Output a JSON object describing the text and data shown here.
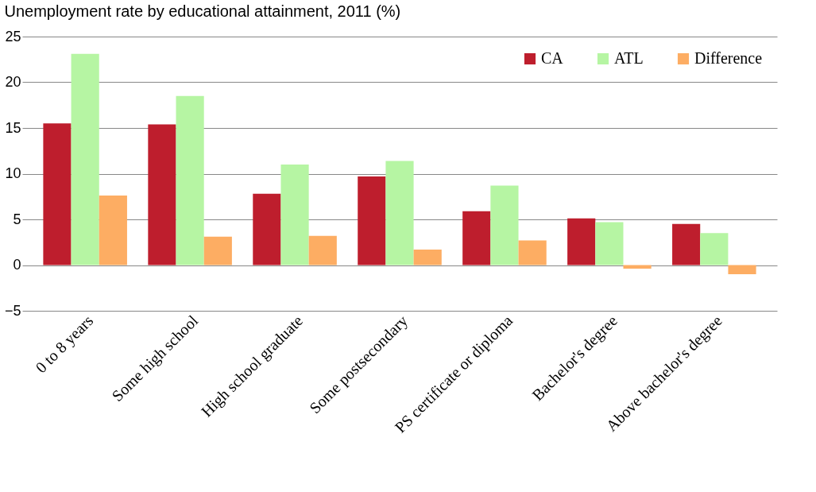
{
  "chart_data": {
    "type": "bar",
    "title": "Unemployment rate by educational attainment, 2011 (%)",
    "categories": [
      "0 to 8  years",
      "Some high school",
      "High school graduate",
      "Some postsecondary",
      "PS certificate or diploma",
      "Bachelor's degree",
      "Above bachelor's degree"
    ],
    "series": [
      {
        "name": "CA",
        "color": "#be1e2d",
        "values": [
          15.5,
          15.4,
          7.8,
          9.7,
          5.9,
          5.1,
          4.5
        ]
      },
      {
        "name": "ATL",
        "color": "#b6f5a3",
        "values": [
          23.1,
          18.5,
          11.0,
          11.4,
          8.7,
          4.7,
          3.5
        ]
      },
      {
        "name": "Difference",
        "color": "#fdad63",
        "values": [
          7.6,
          3.1,
          3.2,
          1.7,
          2.7,
          -0.4,
          -1.0
        ]
      }
    ],
    "ylim": [
      -5,
      25
    ],
    "yticks": [
      -5,
      0,
      5,
      10,
      15,
      20,
      25
    ],
    "grid": "y",
    "legend": "top right"
  }
}
